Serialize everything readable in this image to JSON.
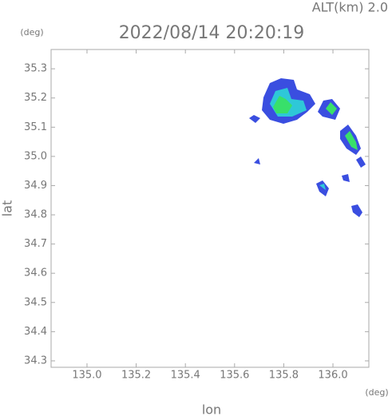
{
  "chart_data": {
    "type": "map",
    "title": "2022/08/14 20:20:19",
    "annotation": "ALT(km)  2.0",
    "x_label": "lon",
    "y_label": "lat",
    "x_unit": "(deg)",
    "y_unit": "(deg)",
    "xlim": [
      134.854,
      136.146
    ],
    "ylim": [
      34.278,
      35.366
    ],
    "xticks": [
      {
        "value": 135.0,
        "label": "135.0"
      },
      135.2,
      135.4,
      135.6,
      135.8,
      {
        "value": 136.0,
        "label": "136.0"
      }
    ],
    "yticks": [
      34.3,
      34.4,
      34.5,
      34.6,
      34.7,
      34.8,
      34.9,
      {
        "value": 35.0,
        "label": "35.0"
      },
      35.1,
      35.2,
      35.3
    ],
    "grid": false
  }
}
